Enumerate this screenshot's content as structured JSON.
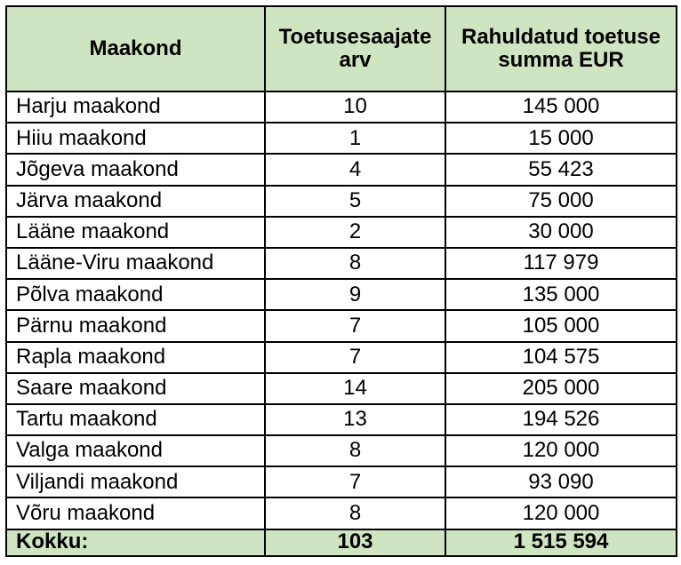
{
  "table": {
    "headers": [
      "Maakond",
      "Toetusesaajate arv",
      "Rahuldatud toetuse summa EUR"
    ],
    "rows": [
      {
        "county": "Harju maakond",
        "recipients": "10",
        "amount": "145 000"
      },
      {
        "county": "Hiiu maakond",
        "recipients": "1",
        "amount": "15 000"
      },
      {
        "county": "Jõgeva maakond",
        "recipients": "4",
        "amount": "55 423"
      },
      {
        "county": "Järva maakond",
        "recipients": "5",
        "amount": "75 000"
      },
      {
        "county": "Lääne maakond",
        "recipients": "2",
        "amount": "30 000"
      },
      {
        "county": "Lääne-Viru maakond",
        "recipients": "8",
        "amount": "117 979"
      },
      {
        "county": "Põlva maakond",
        "recipients": "9",
        "amount": "135 000"
      },
      {
        "county": "Pärnu maakond",
        "recipients": "7",
        "amount": "105 000"
      },
      {
        "county": "Rapla maakond",
        "recipients": "7",
        "amount": "104 575"
      },
      {
        "county": "Saare maakond",
        "recipients": "14",
        "amount": "205 000"
      },
      {
        "county": "Tartu maakond",
        "recipients": "13",
        "amount": "194 526"
      },
      {
        "county": "Valga maakond",
        "recipients": "8",
        "amount": "120 000"
      },
      {
        "county": "Viljandi maakond",
        "recipients": "7",
        "amount": "93 090"
      },
      {
        "county": "Võru maakond",
        "recipients": "8",
        "amount": "120 000"
      }
    ],
    "total": {
      "label": "Kokku:",
      "recipients": "103",
      "amount": "1 515 594"
    },
    "header_bg": "#cfe4c0"
  }
}
